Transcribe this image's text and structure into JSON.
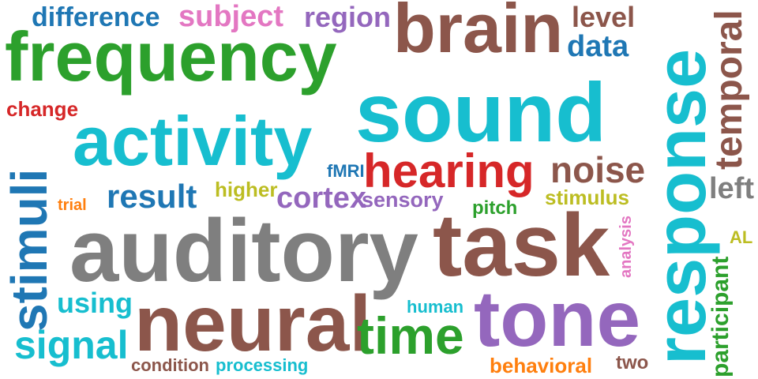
{
  "colors": {
    "blue": "#1f77b4",
    "pink": "#e377c2",
    "purple": "#9467bd",
    "brown": "#8c564b",
    "green": "#2ca02c",
    "red": "#d62728",
    "cyan": "#17becf",
    "orange": "#ff7f0e",
    "olive": "#bcbd22",
    "gray": "#7f7f7f"
  },
  "words": [
    {
      "text": "difference",
      "color": "blue"
    },
    {
      "text": "subject",
      "color": "pink"
    },
    {
      "text": "region",
      "color": "purple"
    },
    {
      "text": "brain",
      "color": "brown"
    },
    {
      "text": "level",
      "color": "brown"
    },
    {
      "text": "data",
      "color": "blue"
    },
    {
      "text": "response",
      "color": "cyan"
    },
    {
      "text": "temporal",
      "color": "brown"
    },
    {
      "text": "frequency",
      "color": "green"
    },
    {
      "text": "change",
      "color": "red"
    },
    {
      "text": "sound",
      "color": "cyan"
    },
    {
      "text": "activity",
      "color": "cyan"
    },
    {
      "text": "stimuli",
      "color": "blue"
    },
    {
      "text": "fMRI",
      "color": "blue"
    },
    {
      "text": "hearing",
      "color": "red"
    },
    {
      "text": "noise",
      "color": "brown"
    },
    {
      "text": "left",
      "color": "gray"
    },
    {
      "text": "result",
      "color": "blue"
    },
    {
      "text": "higher",
      "color": "olive"
    },
    {
      "text": "cortex",
      "color": "purple"
    },
    {
      "text": "sensory",
      "color": "purple"
    },
    {
      "text": "stimulus",
      "color": "olive"
    },
    {
      "text": "trial",
      "color": "orange"
    },
    {
      "text": "pitch",
      "color": "green"
    },
    {
      "text": "AL",
      "color": "olive"
    },
    {
      "text": "auditory",
      "color": "gray"
    },
    {
      "text": "task",
      "color": "brown"
    },
    {
      "text": "analysis",
      "color": "pink"
    },
    {
      "text": "participant",
      "color": "green"
    },
    {
      "text": "using",
      "color": "cyan"
    },
    {
      "text": "neural",
      "color": "brown"
    },
    {
      "text": "human",
      "color": "cyan"
    },
    {
      "text": "tone",
      "color": "purple"
    },
    {
      "text": "signal",
      "color": "cyan"
    },
    {
      "text": "time",
      "color": "green"
    },
    {
      "text": "condition",
      "color": "brown"
    },
    {
      "text": "processing",
      "color": "cyan"
    },
    {
      "text": "behavioral",
      "color": "orange"
    },
    {
      "text": "two",
      "color": "brown"
    }
  ]
}
